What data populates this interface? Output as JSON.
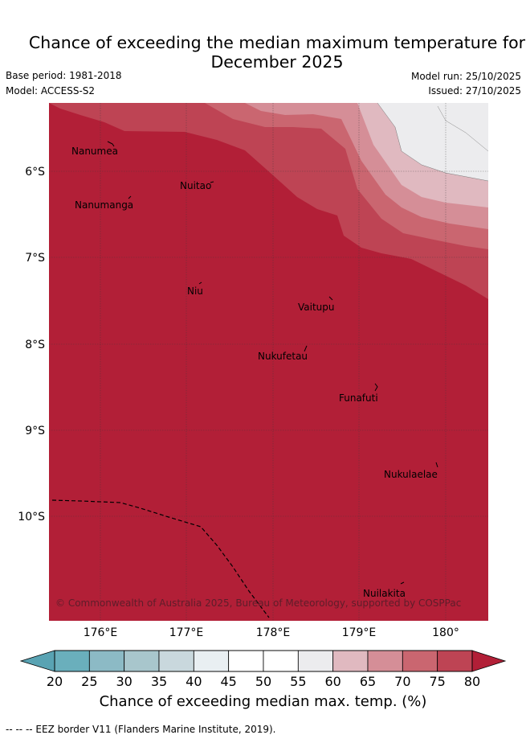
{
  "title_line1": "Chance of exceeding the median maximum temperature for",
  "title_line2": "December 2025",
  "base_period": "Base period: 1981-2018",
  "model": "Model: ACCESS-S2",
  "model_run": "Model run: 25/10/2025",
  "issued": "Issued: 27/10/2025",
  "lat_labels": [
    "6°S",
    "7°S",
    "8°S",
    "9°S",
    "10°S"
  ],
  "lon_labels": [
    "176°E",
    "177°E",
    "178°E",
    "179°E",
    "180°"
  ],
  "islands": [
    "Nanumea",
    "Nuitao",
    "Nanumanga",
    "Niu",
    "Vaitupu",
    "Nukufetau",
    "Funafuti",
    "Nukulaelae",
    "Nuilakita"
  ],
  "copyright": "© Commonwealth of Australia 2025, Bureau of Meteorology, supported by COSPPac",
  "colorbar": {
    "ticks": [
      "20",
      "25",
      "30",
      "35",
      "40",
      "45",
      "50",
      "55",
      "60",
      "65",
      "70",
      "75",
      "80"
    ],
    "colors": [
      "#6aafbc",
      "#8cbac5",
      "#a8c6cc",
      "#c9d8dd",
      "#e9eff2",
      "#ffffff",
      "#ffffff",
      "#ececee",
      "#e0b9c0",
      "#d58e97",
      "#ca6670",
      "#be4454"
    ],
    "under_color": "#59a3b3",
    "over_color": "#b21f37",
    "title": "Chance of exceeding median max. temp. (%)"
  },
  "eez_note": "--  --  -- EEZ border V11 (Flanders Marine Institute, 2019)."
}
